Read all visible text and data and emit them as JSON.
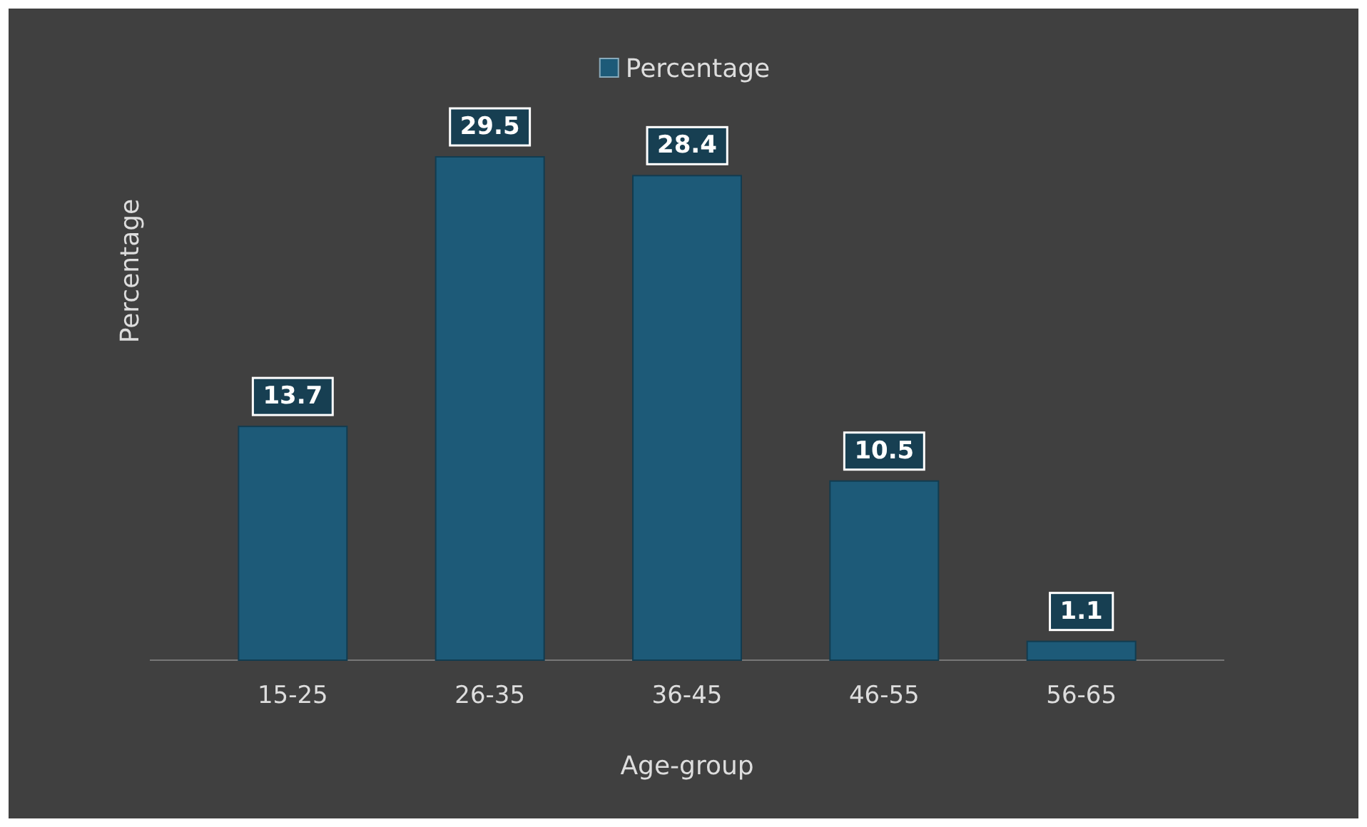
{
  "chart_data": {
    "type": "bar",
    "xlabel": "Age-group",
    "ylabel": "Percentage",
    "categories": [
      "15-25",
      "26-35",
      "36-45",
      "46-55",
      "56-65"
    ],
    "series": [
      {
        "name": "Percentage",
        "color": "#1d5a78",
        "values": [
          13.7,
          29.5,
          28.4,
          10.5,
          1.1
        ]
      }
    ],
    "data_labels": true,
    "legend": "top",
    "grid": false
  }
}
